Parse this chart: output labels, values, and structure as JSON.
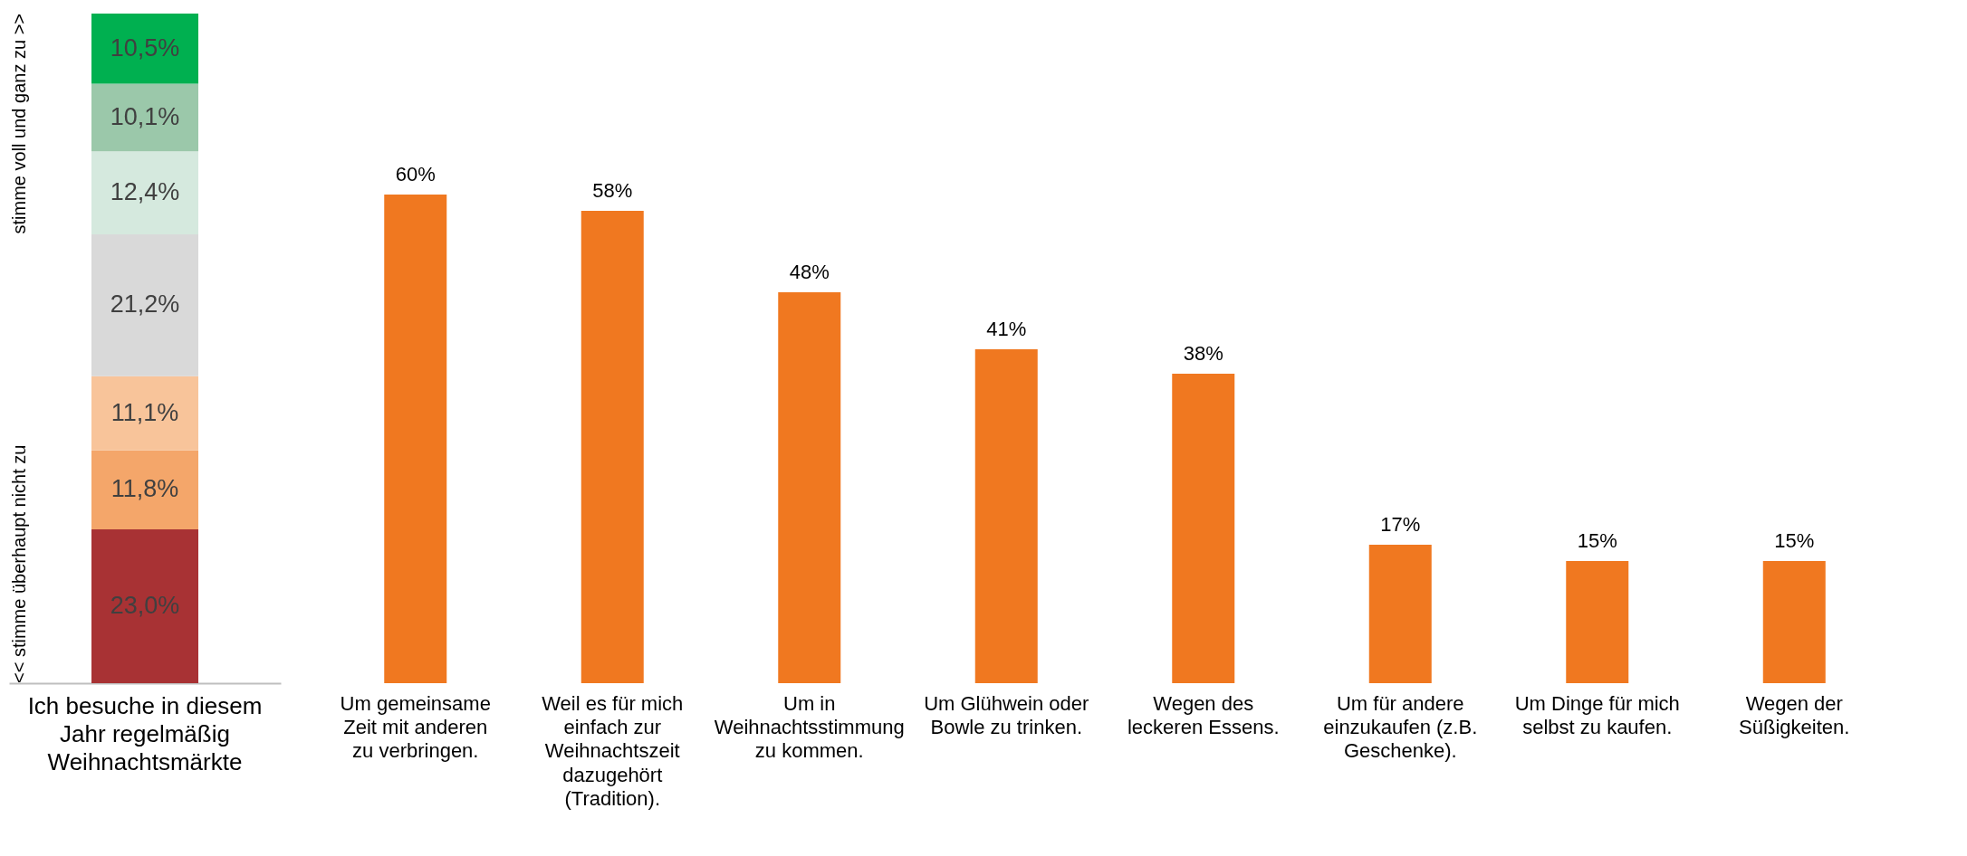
{
  "chart_data": [
    {
      "type": "bar",
      "stacked": true,
      "categories": [
        "Ich besuche in diesem Jahr regelmäßig Weihnachtsmärkte"
      ],
      "ylim": [
        0,
        100.1
      ],
      "tick_labels": "x",
      "annotations": [
        "<<  stimme überhaupt nicht zu",
        "stimme voll und ganz zu >>"
      ],
      "series": [
        {
          "color": "#a83234",
          "values": [
            23.0
          ],
          "value_labels": [
            "23,0%"
          ]
        },
        {
          "color": "#f4a66a",
          "values": [
            11.8
          ],
          "value_labels": [
            "11,8%"
          ]
        },
        {
          "color": "#f8c49a",
          "values": [
            11.1
          ],
          "value_labels": [
            "11,1%"
          ]
        },
        {
          "color": "#d9d9d9",
          "values": [
            21.2
          ],
          "value_labels": [
            "21,2%"
          ]
        },
        {
          "color": "#d5e9de",
          "values": [
            12.4
          ],
          "value_labels": [
            "12,4%"
          ]
        },
        {
          "color": "#9bc8aa",
          "values": [
            10.1
          ],
          "value_labels": [
            "10,1%"
          ]
        },
        {
          "color": "#00b050",
          "values": [
            10.5
          ],
          "value_labels": [
            "10,5%"
          ]
        }
      ]
    },
    {
      "type": "bar",
      "categories": [
        "Um gemeinsame Zeit mit anderen zu verbringen.",
        "Weil es für mich einfach zur Weihnachtszeit dazugehört (Tradition).",
        "Um in Weihnachtsstimmung zu kommen.",
        "Um Glühwein oder Bowle zu trinken.",
        "Wegen des leckeren Essens.",
        "Um für andere einzukaufen (z.B. Geschenke).",
        "Um Dinge für mich selbst zu kaufen.",
        "Wegen der Süßigkeiten."
      ],
      "tick_labels": "x",
      "color": "#f07820",
      "values": [
        60,
        58,
        48,
        41,
        38,
        17,
        15,
        15
      ],
      "value_labels": [
        "60%",
        "58%",
        "48%",
        "41%",
        "38%",
        "17%",
        "15%",
        "15%"
      ]
    }
  ]
}
